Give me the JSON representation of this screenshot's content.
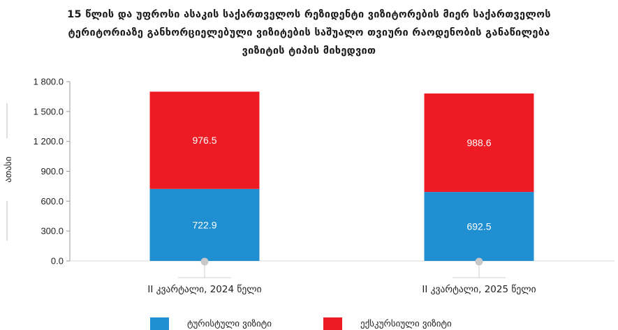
{
  "chart_data": {
    "type": "bar",
    "stacked": true,
    "title_lines": [
      "15 წლის და უფროსი ასაკის საქართველოს რეზიდენტი ვიზიტორების მიერ საქართველოს",
      "ტერიტორიაზე განხორციელებული ვიზიტების საშუალო თვიური რაოდენობის განაწილება",
      "ვიზიტის ტიპის მიხედვით"
    ],
    "categories": [
      "II კვარტალი, 2024 წელი",
      "II კვარტალი, 2025 წელი"
    ],
    "series": [
      {
        "name": "ტურისტული ვიზიტი",
        "values": [
          722.9,
          692.5
        ],
        "color": "#1f8fd1"
      },
      {
        "name": "ექსკურსიული ვიზიტი",
        "values": [
          976.5,
          988.6
        ],
        "color": "#ed1c24"
      }
    ],
    "data_labels": [
      [
        "722.9",
        "692.5"
      ],
      [
        "976.5",
        "988.6"
      ]
    ],
    "ylabel": "ათასი",
    "ylim": [
      0,
      1800
    ],
    "yticks": [
      0,
      300,
      600,
      900,
      1200,
      1500,
      1800
    ],
    "ytick_labels": [
      "0.0",
      "300.0",
      "600.0",
      "900.0",
      "1 200.0",
      "1 500.0",
      "1 800.0"
    ],
    "grid": false,
    "legend_position": "bottom"
  }
}
